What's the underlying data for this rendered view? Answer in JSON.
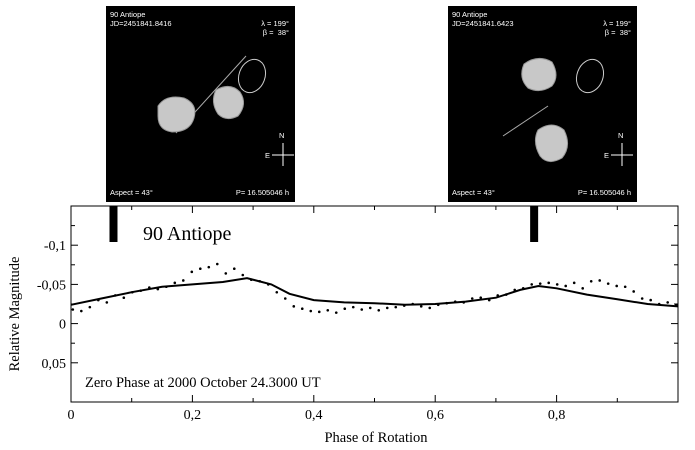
{
  "panels": [
    {
      "object": "90 Antiope",
      "epoch": "JD=2451841.8416",
      "lambda": "λ = 199°",
      "beta": "β =  38°",
      "aspect": "Aspect = 43°",
      "period": "P= 16.505046 h",
      "north": "N",
      "east": "E"
    },
    {
      "object": "90 Antiope",
      "epoch": "JD=2451841.6423",
      "lambda": "λ = 199°",
      "beta": "β =  38°",
      "aspect": "Aspect = 43°",
      "period": "P= 16.505046 h",
      "north": "N",
      "east": "E"
    }
  ],
  "chart_data": {
    "type": "scatter",
    "title": "90 Antiope",
    "annotation": "Zero Phase at 2000 October 24.3000 UT",
    "xlabel": "Phase of Rotation",
    "ylabel": "Relative Magnitude",
    "xlim": [
      0,
      1.0
    ],
    "ylim": [
      0.1,
      -0.15
    ],
    "y_inverted": true,
    "xticks": [
      0,
      0.2,
      0.4,
      0.6,
      0.8
    ],
    "xtick_labels": [
      "0",
      "0,2",
      "0,4",
      "0,6",
      "0,8"
    ],
    "yticks": [
      -0.1,
      -0.05,
      0,
      0.05
    ],
    "ytick_labels": [
      "-0,1",
      "-0,05",
      "0",
      "0,05"
    ],
    "markers": [
      0.07,
      0.763
    ],
    "model_curve": {
      "x": [
        0,
        0.05,
        0.1,
        0.15,
        0.2,
        0.25,
        0.29,
        0.33,
        0.36,
        0.4,
        0.45,
        0.5,
        0.55,
        0.6,
        0.65,
        0.7,
        0.74,
        0.77,
        0.8,
        0.85,
        0.9,
        0.95,
        1.0
      ],
      "y": [
        -0.024,
        -0.032,
        -0.04,
        -0.047,
        -0.05,
        -0.053,
        -0.058,
        -0.05,
        -0.038,
        -0.03,
        -0.027,
        -0.026,
        -0.024,
        -0.025,
        -0.028,
        -0.033,
        -0.043,
        -0.048,
        -0.045,
        -0.037,
        -0.031,
        -0.025,
        -0.022
      ]
    },
    "observations": {
      "x": [
        0.003,
        0.017,
        0.031,
        0.045,
        0.059,
        0.073,
        0.087,
        0.101,
        0.115,
        0.129,
        0.143,
        0.157,
        0.171,
        0.185,
        0.199,
        0.213,
        0.227,
        0.241,
        0.255,
        0.269,
        0.283,
        0.297,
        0.311,
        0.325,
        0.339,
        0.353,
        0.367,
        0.381,
        0.395,
        0.409,
        0.423,
        0.437,
        0.451,
        0.465,
        0.479,
        0.493,
        0.507,
        0.521,
        0.535,
        0.549,
        0.563,
        0.577,
        0.591,
        0.605,
        0.619,
        0.633,
        0.647,
        0.661,
        0.675,
        0.689,
        0.703,
        0.717,
        0.731,
        0.745,
        0.759,
        0.773,
        0.787,
        0.801,
        0.815,
        0.829,
        0.843,
        0.857,
        0.871,
        0.885,
        0.899,
        0.913,
        0.927,
        0.941,
        0.955,
        0.969,
        0.983,
        0.997
      ],
      "y": [
        -0.018,
        -0.016,
        -0.021,
        -0.03,
        -0.027,
        -0.036,
        -0.033,
        -0.04,
        -0.042,
        -0.046,
        -0.044,
        -0.047,
        -0.052,
        -0.055,
        -0.066,
        -0.07,
        -0.072,
        -0.076,
        -0.064,
        -0.07,
        -0.062,
        -0.056,
        -0.054,
        -0.05,
        -0.04,
        -0.032,
        -0.022,
        -0.019,
        -0.016,
        -0.015,
        -0.017,
        -0.014,
        -0.019,
        -0.021,
        -0.018,
        -0.02,
        -0.017,
        -0.02,
        -0.021,
        -0.023,
        -0.025,
        -0.022,
        -0.02,
        -0.024,
        -0.026,
        -0.028,
        -0.027,
        -0.032,
        -0.033,
        -0.03,
        -0.036,
        -0.037,
        -0.043,
        -0.045,
        -0.05,
        -0.051,
        -0.052,
        -0.05,
        -0.048,
        -0.052,
        -0.045,
        -0.054,
        -0.055,
        -0.051,
        -0.048,
        -0.047,
        -0.041,
        -0.032,
        -0.03,
        -0.025,
        -0.027,
        -0.024
      ]
    }
  }
}
